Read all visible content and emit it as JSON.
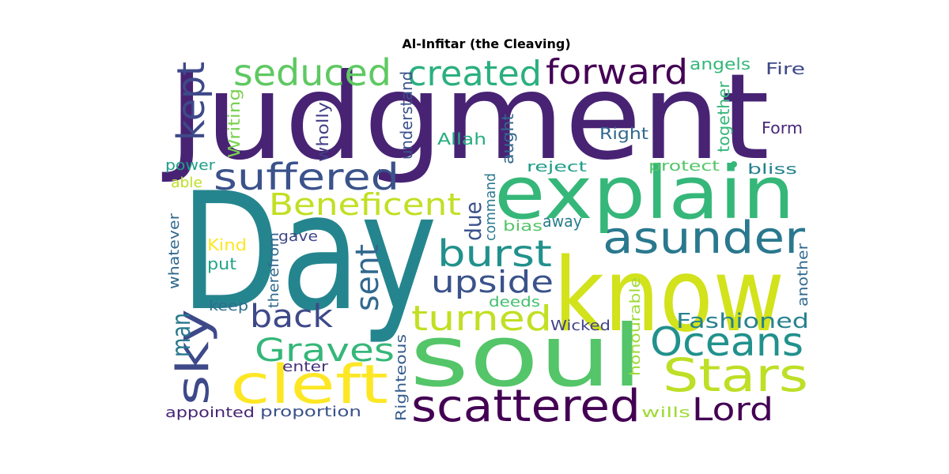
{
  "title": "Al-Infitar (the Cleaving)",
  "words": [
    {
      "id": "judgment",
      "text": "Judgment",
      "color": "#482374"
    },
    {
      "id": "day",
      "text": "Day",
      "color": "#25858e"
    },
    {
      "id": "know",
      "text": "know",
      "color": "#d2e21b"
    },
    {
      "id": "soul",
      "text": "soul",
      "color": "#54c568"
    },
    {
      "id": "explain",
      "text": "explain",
      "color": "#35b779"
    },
    {
      "id": "asunder",
      "text": "asunder",
      "color": "#2a788e"
    },
    {
      "id": "sky",
      "text": "sky",
      "color": "#3e4989"
    },
    {
      "id": "cleft",
      "text": "cleft",
      "color": "#fde725"
    },
    {
      "id": "scattered",
      "text": "scattered",
      "color": "#440154"
    },
    {
      "id": "stars",
      "text": "Stars",
      "color": "#bddf26"
    },
    {
      "id": "oceans",
      "text": "Oceans",
      "color": "#21918c"
    },
    {
      "id": "lord",
      "text": "Lord",
      "color": "#440154"
    },
    {
      "id": "seduced",
      "text": "seduced",
      "color": "#5ec962"
    },
    {
      "id": "created",
      "text": "created",
      "color": "#2ab07f"
    },
    {
      "id": "forward",
      "text": "forward",
      "color": "#440154"
    },
    {
      "id": "suffered",
      "text": "suffered",
      "color": "#3b528b"
    },
    {
      "id": "beneficent",
      "text": "Beneficent",
      "color": "#c2df23"
    },
    {
      "id": "kept",
      "text": "kept",
      "color": "#3e4989"
    },
    {
      "id": "burst",
      "text": "burst",
      "color": "#21918c"
    },
    {
      "id": "sent",
      "text": "sent",
      "color": "#31688e"
    },
    {
      "id": "upside",
      "text": "upside",
      "color": "#3b528b"
    },
    {
      "id": "turned",
      "text": "turned",
      "color": "#c2df23"
    },
    {
      "id": "back",
      "text": "back",
      "color": "#3e4989"
    },
    {
      "id": "graves",
      "text": "Graves",
      "color": "#35b779"
    },
    {
      "id": "man",
      "text": "man",
      "color": "#2a788e"
    },
    {
      "id": "fashioned",
      "text": "Fashioned",
      "color": "#26828e"
    },
    {
      "id": "due",
      "text": "due",
      "color": "#3b528b"
    },
    {
      "id": "angels",
      "text": "angels",
      "color": "#35b779"
    },
    {
      "id": "fire",
      "text": "Fire",
      "color": "#3e4989"
    },
    {
      "id": "understand",
      "text": "understand",
      "color": "#3b528b"
    },
    {
      "id": "writing",
      "text": "Writing",
      "color": "#7ad151"
    },
    {
      "id": "wholly",
      "text": "wholly",
      "color": "#433e85"
    },
    {
      "id": "allah",
      "text": "Allah",
      "color": "#26ad81"
    },
    {
      "id": "aught",
      "text": "aught",
      "color": "#31688e"
    },
    {
      "id": "right",
      "text": "Right",
      "color": "#31688e"
    },
    {
      "id": "together",
      "text": "together",
      "color": "#35b779"
    },
    {
      "id": "form",
      "text": "Form",
      "color": "#482878"
    },
    {
      "id": "power",
      "text": "power",
      "color": "#1f9e89"
    },
    {
      "id": "reject",
      "text": "reject",
      "color": "#1f9e89"
    },
    {
      "id": "protect",
      "text": "protect",
      "color": "#54c568"
    },
    {
      "id": "bliss",
      "text": "bliss",
      "color": "#26828e"
    },
    {
      "id": "able",
      "text": "able",
      "color": "#bddf26"
    },
    {
      "id": "command",
      "text": "command",
      "color": "#2a788e"
    },
    {
      "id": "bias",
      "text": "bias",
      "color": "#54c568"
    },
    {
      "id": "away",
      "text": "away",
      "color": "#287c8e"
    },
    {
      "id": "whatever",
      "text": "whatever",
      "color": "#31688e"
    },
    {
      "id": "kind",
      "text": "Kind",
      "color": "#fde725"
    },
    {
      "id": "gave",
      "text": "gave",
      "color": "#404688"
    },
    {
      "id": "therefrom",
      "text": "therefrom",
      "color": "#31688e"
    },
    {
      "id": "put",
      "text": "put",
      "color": "#20a486"
    },
    {
      "id": "another",
      "text": "another",
      "color": "#31688e"
    },
    {
      "id": "honourable",
      "text": "honourable",
      "color": "#a0da39"
    },
    {
      "id": "keep",
      "text": "keep",
      "color": "#2e6e8e"
    },
    {
      "id": "deeds",
      "text": "deeds",
      "color": "#44bf70"
    },
    {
      "id": "wicked",
      "text": "Wicked",
      "color": "#414487"
    },
    {
      "id": "enter",
      "text": "enter",
      "color": "#46327e"
    },
    {
      "id": "righteous",
      "text": "Righteous",
      "color": "#365c8d"
    },
    {
      "id": "appointed",
      "text": "appointed",
      "color": "#482475"
    },
    {
      "id": "proportion",
      "text": "proportion",
      "color": "#3b528b"
    },
    {
      "id": "wills",
      "text": "wills",
      "color": "#a0da39"
    }
  ]
}
